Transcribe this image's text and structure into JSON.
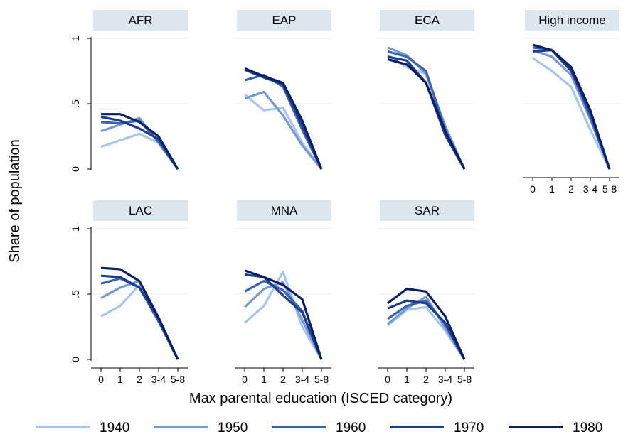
{
  "chart_data": {
    "type": "line",
    "xlabel": "Max parental education (ISCED category)",
    "ylabel": "Share of population",
    "categories": [
      "0",
      "1",
      "2",
      "3-4",
      "5-8"
    ],
    "yticks": [
      "0",
      ".5",
      "1"
    ],
    "ylim": [
      0,
      1
    ],
    "grid": true,
    "legend_position": "bottom",
    "series_names": [
      "1940",
      "1950",
      "1960",
      "1970",
      "1980"
    ],
    "series_colors": [
      "#a9c6e8",
      "#7699d4",
      "#3d64b0",
      "#1c3c8e",
      "#0a1f63"
    ],
    "panels": [
      {
        "title": "AFR",
        "series": [
          {
            "name": "1940",
            "values": [
              0.17,
              0.22,
              0.27,
              0.2,
              0.0
            ]
          },
          {
            "name": "1950",
            "values": [
              0.29,
              0.34,
              0.39,
              0.2,
              0.0
            ]
          },
          {
            "name": "1960",
            "values": [
              0.36,
              0.35,
              0.37,
              0.21,
              0.0
            ]
          },
          {
            "name": "1970",
            "values": [
              0.4,
              0.37,
              0.31,
              0.23,
              0.0
            ]
          },
          {
            "name": "1980",
            "values": [
              0.42,
              0.42,
              0.36,
              0.25,
              0.0
            ]
          }
        ]
      },
      {
        "title": "EAP",
        "series": [
          {
            "name": "1940",
            "values": [
              0.57,
              0.45,
              0.47,
              0.2,
              0.0
            ]
          },
          {
            "name": "1950",
            "values": [
              0.54,
              0.59,
              0.41,
              0.18,
              0.0
            ]
          },
          {
            "name": "1960",
            "values": [
              0.68,
              0.72,
              0.63,
              0.3,
              0.0
            ]
          },
          {
            "name": "1970",
            "values": [
              0.76,
              0.7,
              0.65,
              0.33,
              0.0
            ]
          },
          {
            "name": "1980",
            "values": [
              0.77,
              0.71,
              0.66,
              0.37,
              0.0
            ]
          }
        ]
      },
      {
        "title": "ECA",
        "series": [
          {
            "name": "1940",
            "values": [
              0.87,
              0.78,
              0.73,
              0.3,
              0.0
            ]
          },
          {
            "name": "1950",
            "values": [
              0.93,
              0.87,
              0.73,
              0.33,
              0.0
            ]
          },
          {
            "name": "1960",
            "values": [
              0.9,
              0.86,
              0.75,
              0.3,
              0.0
            ]
          },
          {
            "name": "1970",
            "values": [
              0.86,
              0.83,
              0.66,
              0.26,
              0.0
            ]
          },
          {
            "name": "1980",
            "values": [
              0.84,
              0.8,
              0.66,
              0.29,
              0.0
            ]
          }
        ]
      },
      {
        "title": "High income",
        "series": [
          {
            "name": "1940",
            "values": [
              0.85,
              0.75,
              0.63,
              0.3,
              0.0
            ]
          },
          {
            "name": "1950",
            "values": [
              0.91,
              0.86,
              0.72,
              0.38,
              0.0
            ]
          },
          {
            "name": "1960",
            "values": [
              0.93,
              0.91,
              0.76,
              0.4,
              0.0
            ]
          },
          {
            "name": "1970",
            "values": [
              0.9,
              0.91,
              0.75,
              0.43,
              0.0
            ]
          },
          {
            "name": "1980",
            "values": [
              0.95,
              0.91,
              0.78,
              0.45,
              0.0
            ]
          }
        ]
      },
      {
        "title": "LAC",
        "series": [
          {
            "name": "1940",
            "values": [
              0.33,
              0.41,
              0.57,
              0.3,
              0.0
            ]
          },
          {
            "name": "1950",
            "values": [
              0.47,
              0.55,
              0.6,
              0.31,
              0.0
            ]
          },
          {
            "name": "1960",
            "values": [
              0.58,
              0.62,
              0.55,
              0.29,
              0.0
            ]
          },
          {
            "name": "1970",
            "values": [
              0.64,
              0.63,
              0.55,
              0.31,
              0.0
            ]
          },
          {
            "name": "1980",
            "values": [
              0.7,
              0.69,
              0.6,
              0.32,
              0.0
            ]
          }
        ]
      },
      {
        "title": "MNA",
        "series": [
          {
            "name": "1940",
            "values": [
              0.28,
              0.41,
              0.67,
              0.25,
              0.0
            ]
          },
          {
            "name": "1950",
            "values": [
              0.4,
              0.54,
              0.59,
              0.3,
              0.0
            ]
          },
          {
            "name": "1960",
            "values": [
              0.52,
              0.6,
              0.53,
              0.37,
              0.0
            ]
          },
          {
            "name": "1970",
            "values": [
              0.65,
              0.63,
              0.49,
              0.36,
              0.0
            ]
          },
          {
            "name": "1980",
            "values": [
              0.68,
              0.63,
              0.57,
              0.46,
              0.0
            ]
          }
        ]
      },
      {
        "title": "SAR",
        "series": [
          {
            "name": "1940",
            "values": [
              0.26,
              0.38,
              0.4,
              0.22,
              0.0
            ]
          },
          {
            "name": "1950",
            "values": [
              0.27,
              0.39,
              0.48,
              0.24,
              0.0
            ]
          },
          {
            "name": "1960",
            "values": [
              0.31,
              0.41,
              0.45,
              0.27,
              0.0
            ]
          },
          {
            "name": "1970",
            "values": [
              0.39,
              0.45,
              0.43,
              0.28,
              0.0
            ]
          },
          {
            "name": "1980",
            "values": [
              0.43,
              0.54,
              0.52,
              0.33,
              0.0
            ]
          }
        ]
      }
    ]
  }
}
